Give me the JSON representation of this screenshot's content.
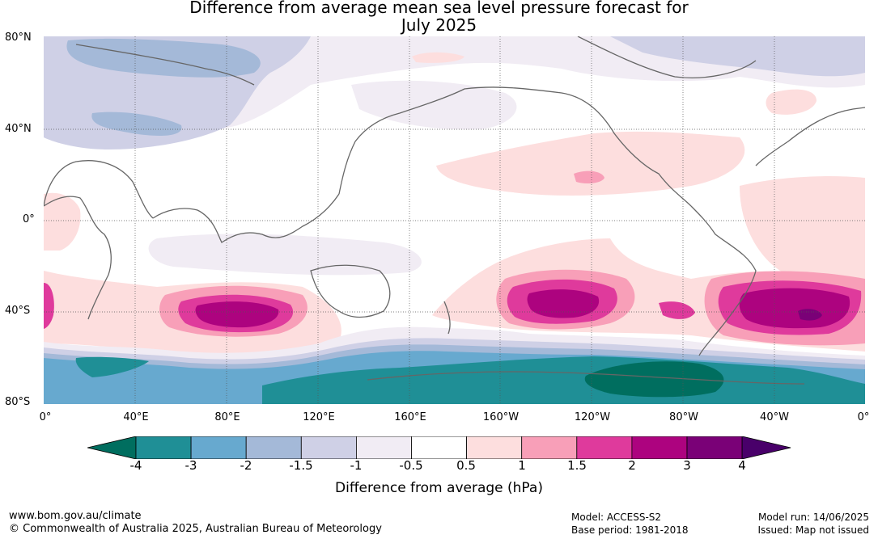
{
  "title_line1": "Difference from average mean sea level pressure forecast for",
  "title_line2": "July 2025",
  "lat_labels": [
    "80°N",
    "40°N",
    "0°",
    "40°S",
    "80°S"
  ],
  "lon_labels": [
    "0°",
    "40°E",
    "80°E",
    "120°E",
    "160°E",
    "160°W",
    "120°W",
    "80°W",
    "40°W",
    "0°"
  ],
  "colorbar": {
    "ticks": [
      "-4",
      "-3",
      "-2",
      "-1.5",
      "-1",
      "-0.5",
      "0.5",
      "1",
      "1.5",
      "2",
      "3",
      "4"
    ],
    "colors": [
      "#006e5f",
      "#1f8f96",
      "#67a9cf",
      "#a4b9d8",
      "#cfd0e6",
      "#f1ecf4",
      "#ffffff",
      "#fddede",
      "#f89fb8",
      "#df3a9c",
      "#ad037f",
      "#7a0177",
      "#49006a"
    ],
    "label": "Difference from average (hPa)"
  },
  "footer": {
    "site": "www.bom.gov.au/climate",
    "copyright": "© Commonwealth of Australia 2025, Australian Bureau of Meteorology",
    "model": "Model: ACCESS-S2",
    "base_period": "Base period: 1981-2018",
    "model_run": "Model run: 14/06/2025",
    "issued": "Issued: Map not issued"
  }
}
